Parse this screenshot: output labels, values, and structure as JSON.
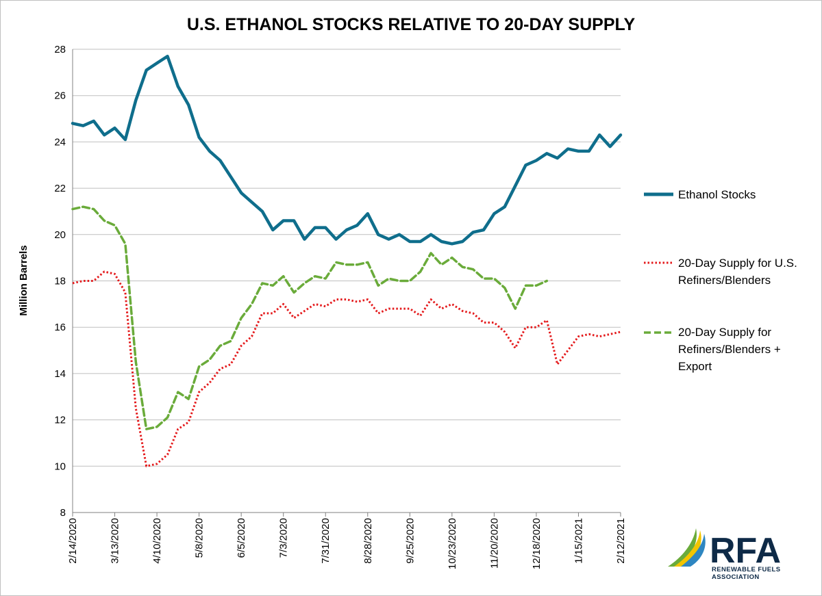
{
  "chart_data": {
    "type": "line",
    "title": "U.S. ETHANOL STOCKS RELATIVE TO 20-DAY SUPPLY",
    "ylabel": "Million Barrels",
    "ylim": [
      8,
      28
    ],
    "yticks": [
      8,
      10,
      12,
      14,
      16,
      18,
      20,
      22,
      24,
      26,
      28
    ],
    "grid": true,
    "legend_position": "right",
    "x_tick_labels": [
      "2/14/2020",
      "3/13/2020",
      "4/10/2020",
      "5/8/2020",
      "6/5/2020",
      "7/3/2020",
      "7/31/2020",
      "8/28/2020",
      "9/25/2020",
      "10/23/2020",
      "11/20/2020",
      "12/18/2020",
      "1/15/2021",
      "2/12/2021"
    ],
    "series": [
      {
        "name": "Ethanol Stocks",
        "color": "#0f6e8c",
        "style": "solid",
        "values": [
          24.8,
          24.7,
          24.9,
          24.3,
          24.6,
          24.1,
          25.8,
          27.1,
          27.4,
          27.7,
          26.4,
          25.6,
          24.2,
          23.6,
          23.2,
          22.5,
          21.8,
          21.4,
          21.0,
          20.2,
          20.6,
          20.6,
          19.8,
          20.3,
          20.3,
          19.8,
          20.2,
          20.4,
          20.9,
          20.0,
          19.8,
          20.0,
          19.7,
          19.7,
          20.0,
          19.7,
          19.6,
          19.7,
          20.1,
          20.2,
          20.9,
          21.2,
          22.1,
          23.0,
          23.2,
          23.5,
          23.3,
          23.7,
          23.6,
          23.6,
          24.3,
          23.8,
          24.3
        ]
      },
      {
        "name": "20-Day Supply for U.S. Refiners/Blenders",
        "color": "#e41a1c",
        "style": "dotted",
        "values": [
          17.9,
          18.0,
          18.0,
          18.4,
          18.3,
          17.5,
          12.5,
          10.0,
          10.1,
          10.5,
          11.6,
          11.9,
          13.2,
          13.6,
          14.2,
          14.4,
          15.2,
          15.6,
          16.6,
          16.6,
          17.0,
          16.4,
          16.7,
          17.0,
          16.9,
          17.2,
          17.2,
          17.1,
          17.2,
          16.6,
          16.8,
          16.8,
          16.8,
          16.5,
          17.2,
          16.8,
          17.0,
          16.7,
          16.6,
          16.2,
          16.2,
          15.8,
          15.1,
          16.0,
          16.0,
          16.3,
          14.4,
          15.0,
          15.6,
          15.7,
          15.6,
          15.7,
          15.8
        ]
      },
      {
        "name": "20-Day Supply for Refiners/Blenders + Export",
        "color": "#6aab3a",
        "style": "dashed",
        "values": [
          21.1,
          21.2,
          21.1,
          20.6,
          20.4,
          19.6,
          14.5,
          11.6,
          11.7,
          12.1,
          13.2,
          12.9,
          14.3,
          14.6,
          15.2,
          15.4,
          16.4,
          17.0,
          17.9,
          17.8,
          18.2,
          17.5,
          17.9,
          18.2,
          18.1,
          18.8,
          18.7,
          18.7,
          18.8,
          17.8,
          18.1,
          18.0,
          18.0,
          18.4,
          19.2,
          18.7,
          19.0,
          18.6,
          18.5,
          18.1,
          18.1,
          17.7,
          16.8,
          17.8,
          17.8,
          18.0,
          null,
          null,
          null,
          null,
          null,
          null,
          null
        ]
      }
    ]
  },
  "logo": {
    "name": "RFA",
    "subtitle_line1": "RENEWABLE FUELS",
    "subtitle_line2": "ASSOCIATION"
  }
}
